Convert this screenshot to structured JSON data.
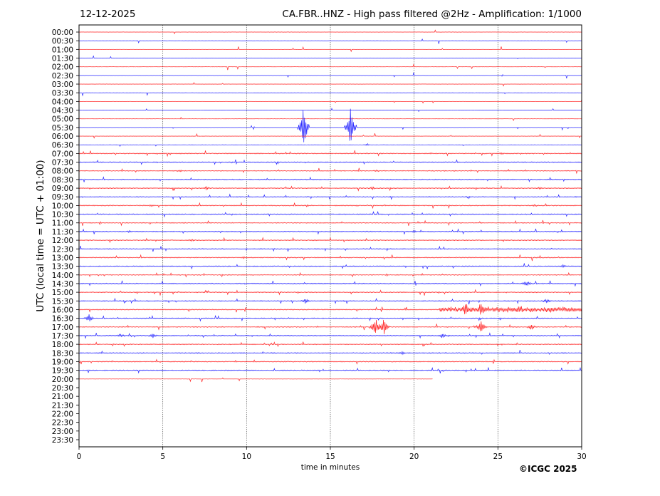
{
  "header": {
    "date": "12-12-2025",
    "title": "CA.FBR..HNZ - High pass filtered @2Hz - Amplification: 1/1000",
    "copyright": "©ICGC 2025"
  },
  "chart_data": {
    "type": "line",
    "subtype": "helicorder",
    "xlabel": "time in minutes",
    "ylabel": "UTC (local time = UTC + 01:00)",
    "xlim": [
      0,
      30
    ],
    "xticks": [
      "0",
      "5",
      "10",
      "15",
      "20",
      "25",
      "30"
    ],
    "xgrid": "vertical dotted at 5-minute ticks",
    "row_labels": [
      "00:00",
      "00:30",
      "01:00",
      "01:30",
      "02:00",
      "02:30",
      "03:00",
      "03:30",
      "04:00",
      "04:30",
      "05:00",
      "05:30",
      "06:00",
      "06:30",
      "07:00",
      "07:30",
      "08:00",
      "08:30",
      "09:00",
      "09:30",
      "10:00",
      "10:30",
      "11:00",
      "11:30",
      "12:00",
      "12:30",
      "13:00",
      "13:30",
      "14:00",
      "14:30",
      "15:00",
      "15:30",
      "16:00",
      "16:30",
      "17:00",
      "17:30",
      "18:00",
      "18:30",
      "19:00",
      "19:30",
      "20:00",
      "20:30",
      "21:00",
      "21:30",
      "22:00",
      "22:30",
      "23:00",
      "23:30"
    ],
    "row_colors": [
      "#ff0000",
      "#0000ff"
    ],
    "data_rows": 41,
    "last_row_end_minute": 21.1,
    "events": [
      {
        "row": "05:30",
        "minute": 13.4,
        "amplitude_rows": 2.5
      },
      {
        "row": "05:30",
        "minute": 16.2,
        "amplitude_rows": 2.5
      },
      {
        "row": "06:30",
        "minute": 17.2,
        "amplitude_rows": 0.1
      },
      {
        "row": "07:00",
        "minute": 25.2,
        "amplitude_rows": 0.15
      },
      {
        "row": "08:00",
        "minute": 6.0,
        "amplitude_rows": 0.15
      },
      {
        "row": "08:00",
        "minute": 17.8,
        "amplitude_rows": 0.15
      },
      {
        "row": "09:00",
        "minute": 7.6,
        "amplitude_rows": 0.2
      },
      {
        "row": "09:00",
        "minute": 17.5,
        "amplitude_rows": 0.2
      },
      {
        "row": "09:00",
        "minute": 27.5,
        "amplitude_rows": 0.15
      },
      {
        "row": "10:00",
        "minute": 4.3,
        "amplitude_rows": 0.15
      },
      {
        "row": "10:00",
        "minute": 13.6,
        "amplitude_rows": 0.15
      },
      {
        "row": "10:00",
        "minute": 27.2,
        "amplitude_rows": 0.15
      },
      {
        "row": "11:30",
        "minute": 3.0,
        "amplitude_rows": 0.15
      },
      {
        "row": "11:30",
        "minute": 20.0,
        "amplitude_rows": 0.15
      },
      {
        "row": "12:00",
        "minute": 6.7,
        "amplitude_rows": 0.15
      },
      {
        "row": "13:00",
        "minute": 9.8,
        "amplitude_rows": 0.15
      },
      {
        "row": "13:30",
        "minute": 28.9,
        "amplitude_rows": 0.2
      },
      {
        "row": "14:30",
        "minute": 26.7,
        "amplitude_rows": 0.4
      },
      {
        "row": "15:30",
        "minute": 13.5,
        "amplitude_rows": 0.3
      },
      {
        "row": "15:30",
        "minute": 27.9,
        "amplitude_rows": 0.3
      },
      {
        "row": "16:00",
        "minute": 23.1,
        "amplitude_rows": 1.0
      },
      {
        "row": "16:00",
        "minute": 24.0,
        "amplitude_rows": 1.0
      },
      {
        "row": "16:00",
        "minute": 26.4,
        "amplitude_rows": 0.4
      },
      {
        "row": "16:00",
        "minute": 28.2,
        "amplitude_rows": 0.4
      },
      {
        "row": "16:30",
        "minute": 0.6,
        "amplitude_rows": 0.5
      },
      {
        "row": "17:00",
        "minute": 17.7,
        "amplitude_rows": 1.3
      },
      {
        "row": "17:00",
        "minute": 18.2,
        "amplitude_rows": 1.0
      },
      {
        "row": "17:00",
        "minute": 24.0,
        "amplitude_rows": 0.8
      },
      {
        "row": "17:00",
        "minute": 27.0,
        "amplitude_rows": 0.4
      },
      {
        "row": "17:30",
        "minute": 2.5,
        "amplitude_rows": 0.3
      },
      {
        "row": "17:30",
        "minute": 4.4,
        "amplitude_rows": 0.3
      },
      {
        "row": "17:30",
        "minute": 21.7,
        "amplitude_rows": 0.3
      },
      {
        "row": "18:30",
        "minute": 19.3,
        "amplitude_rows": 0.2
      }
    ]
  }
}
